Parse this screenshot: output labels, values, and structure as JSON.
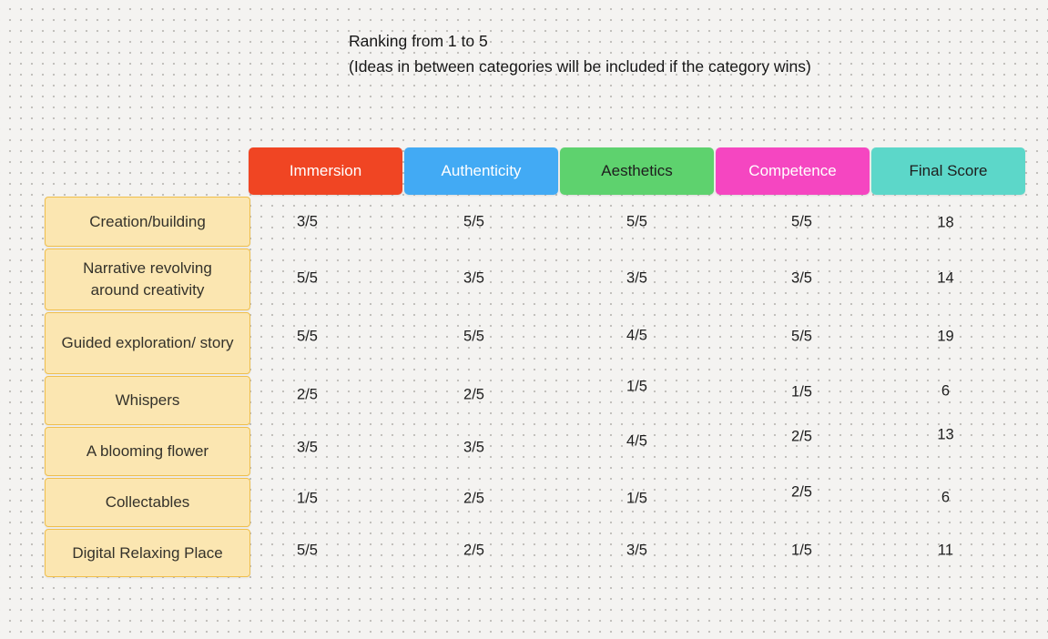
{
  "canvas": {
    "background": "#f4f3f1",
    "dot_color": "#bfbdb9"
  },
  "title": {
    "line1": "Ranking from 1 to 5",
    "line2": "(Ideas in between categories will be included if the category wins)"
  },
  "table": {
    "columns": [
      {
        "label": "Immersion",
        "color": "#f04523",
        "text_color": "#ffffff"
      },
      {
        "label": "Authenticity",
        "color": "#42aaf4",
        "text_color": "#ffffff"
      },
      {
        "label": "Aesthetics",
        "color": "#5ed26e",
        "text_color": "#1e1e1e"
      },
      {
        "label": "Competence",
        "color": "#f546c1",
        "text_color": "#ffffff"
      },
      {
        "label": "Final Score",
        "color": "#5cd7c9",
        "text_color": "#1e1e1e"
      }
    ],
    "row_header_style": {
      "fill": "#fbe6b1",
      "border": "#f0bf4c"
    },
    "rows": [
      {
        "label": "Creation/building",
        "values": [
          "3/5",
          "5/5",
          "5/5",
          "5/5",
          "18"
        ]
      },
      {
        "label": "Narrative revolving around creativity",
        "values": [
          "5/5",
          "3/5",
          "3/5",
          "3/5",
          "14"
        ]
      },
      {
        "label": "Guided exploration/ story",
        "values": [
          "5/5",
          "5/5",
          "4/5",
          "5/5",
          "19"
        ]
      },
      {
        "label": "Whispers",
        "values": [
          "2/5",
          "2/5",
          "1/5",
          "1/5",
          "6"
        ]
      },
      {
        "label": "A blooming flower",
        "values": [
          "3/5",
          "3/5",
          "4/5",
          "2/5",
          "13"
        ]
      },
      {
        "label": "Collectables",
        "values": [
          "1/5",
          "2/5",
          "1/5",
          "2/5",
          "6"
        ]
      },
      {
        "label": "Digital Relaxing Place",
        "values": [
          "5/5",
          "2/5",
          "3/5",
          "1/5",
          "11"
        ]
      }
    ]
  },
  "chart_data": {
    "type": "table",
    "title": "Ranking from 1 to 5",
    "note": "(Ideas in between categories will be included if the category wins)",
    "columns": [
      "Immersion",
      "Authenticity",
      "Aesthetics",
      "Competence",
      "Final Score"
    ],
    "rows": [
      "Creation/building",
      "Narrative revolving around creativity",
      "Guided exploration/ story",
      "Whispers",
      "A blooming flower",
      "Collectables",
      "Digital Relaxing Place"
    ],
    "scores": [
      [
        3,
        5,
        5,
        5,
        18
      ],
      [
        5,
        3,
        3,
        3,
        14
      ],
      [
        5,
        5,
        4,
        5,
        19
      ],
      [
        2,
        2,
        1,
        1,
        6
      ],
      [
        3,
        3,
        4,
        2,
        13
      ],
      [
        1,
        2,
        1,
        2,
        6
      ],
      [
        5,
        2,
        3,
        1,
        11
      ]
    ],
    "score_max": 5
  }
}
